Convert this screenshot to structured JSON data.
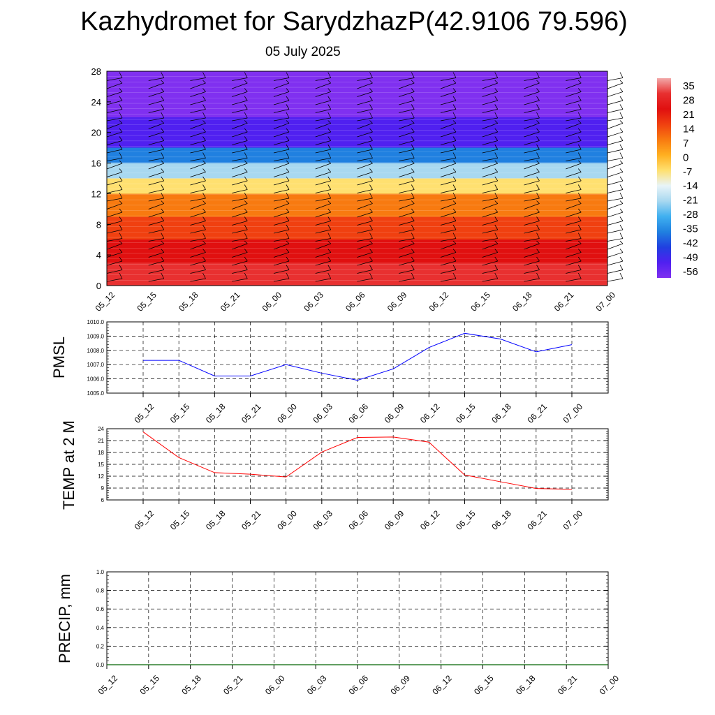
{
  "title": "Kazhydromet for SarydzhazP(42.9106 79.596)",
  "subtitle": "05 July 2025",
  "colorbar": {
    "labels": [
      "35",
      "28",
      "21",
      "14",
      "7",
      "0",
      "-7",
      "-14",
      "-21",
      "-28",
      "-35",
      "-42",
      "-49",
      "-56"
    ],
    "colors": [
      "#f2a9a9",
      "#e83030",
      "#e01010",
      "#f04010",
      "#f87a10",
      "#ffb020",
      "#ffe070",
      "#e8f4f8",
      "#a8d8f0",
      "#40b0f0",
      "#2080e0",
      "#2040e0",
      "#5020f0",
      "#8030f0"
    ]
  },
  "chart_data": [
    {
      "type": "heatmap",
      "title": "",
      "xlabel": "",
      "ylabel": "",
      "x": [
        "05_12",
        "05_15",
        "05_18",
        "05_21",
        "06_00",
        "06_03",
        "06_06",
        "06_09",
        "06_12",
        "06_15",
        "06_18",
        "06_21",
        "07_00"
      ],
      "yticks": [
        0,
        4,
        8,
        12,
        16,
        20,
        24,
        28
      ],
      "ylim": [
        0,
        28
      ],
      "bands": [
        {
          "from": 0,
          "to": 3,
          "value": 28
        },
        {
          "from": 3,
          "to": 6,
          "value": 21
        },
        {
          "from": 6,
          "to": 9,
          "value": 14
        },
        {
          "from": 9,
          "to": 12,
          "value": 7
        },
        {
          "from": 12,
          "to": 14,
          "value": -7
        },
        {
          "from": 14,
          "to": 16,
          "value": -21
        },
        {
          "from": 16,
          "to": 18,
          "value": -35
        },
        {
          "from": 18,
          "to": 20,
          "value": -49
        },
        {
          "from": 20,
          "to": 22,
          "value": -49
        },
        {
          "from": 22,
          "to": 28,
          "value": -56
        }
      ],
      "wind_barbs": true
    },
    {
      "type": "line",
      "ylabel": "PMSL",
      "x": [
        "05_12",
        "05_15",
        "05_18",
        "05_21",
        "06_00",
        "06_03",
        "06_06",
        "06_09",
        "06_12",
        "06_15",
        "06_18",
        "06_21",
        "07_00"
      ],
      "values": [
        1007.3,
        1007.3,
        1006.2,
        1006.2,
        1007.0,
        1006.4,
        1005.9,
        1006.7,
        1008.2,
        1009.2,
        1008.8,
        1007.9,
        1008.4
      ],
      "ylim": [
        1005.0,
        1010.0
      ],
      "yticks": [
        "1005.0",
        "1006.0",
        "1007.0",
        "1008.0",
        "1009.0",
        "1010.0"
      ],
      "color": "#0000ff",
      "grid": true
    },
    {
      "type": "line",
      "ylabel": "TEMP at 2 M",
      "x": [
        "05_12",
        "05_15",
        "05_18",
        "05_21",
        "06_00",
        "06_03",
        "06_06",
        "06_09",
        "06_12",
        "06_15",
        "06_18",
        "06_21",
        "07_00"
      ],
      "values": [
        23.2,
        16.7,
        12.9,
        12.5,
        11.8,
        18.1,
        21.8,
        21.9,
        20.6,
        12.3,
        10.6,
        8.9,
        8.7
      ],
      "ylim": [
        6,
        24
      ],
      "yticks": [
        "6",
        "9",
        "12",
        "15",
        "18",
        "21",
        "24"
      ],
      "color": "#ff0000",
      "grid": true
    },
    {
      "type": "line",
      "ylabel": "PRECIP, mm",
      "x": [
        "05_12",
        "05_15",
        "05_18",
        "05_21",
        "06_00",
        "06_03",
        "06_06",
        "06_09",
        "06_12",
        "06_15",
        "06_18",
        "06_21",
        "07_00"
      ],
      "values": [
        0,
        0,
        0,
        0,
        0,
        0,
        0,
        0,
        0,
        0,
        0,
        0,
        0
      ],
      "ylim": [
        0.0,
        1.0
      ],
      "yticks": [
        "0.0",
        "0.2",
        "0.4",
        "0.6",
        "0.8",
        "1.0"
      ],
      "color": "#006400",
      "grid": true
    }
  ]
}
